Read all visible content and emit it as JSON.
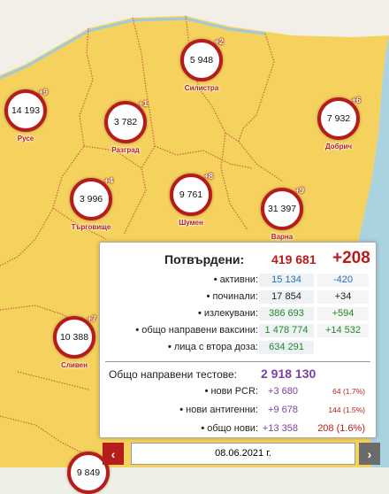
{
  "colors": {
    "region_fill": "#f5d25d",
    "border": "#b71c1c",
    "positive": "#b71c1c"
  },
  "markers": [
    {
      "name": "Силистра",
      "value": "5 948",
      "delta": "+2"
    },
    {
      "name": "Русе",
      "value": "14 193",
      "delta": "+9"
    },
    {
      "name": "Разград",
      "value": "3 782",
      "delta": "+1"
    },
    {
      "name": "Добрич",
      "value": "7 932",
      "delta": "+6"
    },
    {
      "name": "Търговище",
      "value": "3 996",
      "delta": "+4"
    },
    {
      "name": "Шумен",
      "value": "9 761",
      "delta": "+8"
    },
    {
      "name": "Варна",
      "value": "31 397",
      "delta": "+9"
    },
    {
      "name": "Сливен",
      "value": "10 388",
      "delta": "+7"
    },
    {
      "name": "",
      "value": "9 849",
      "delta": ""
    }
  ],
  "panel": {
    "confirmed_label": "Потвърдени:",
    "confirmed_total": "419 681",
    "confirmed_new": "+208",
    "rows": [
      {
        "label": "активни:",
        "value": "15 134",
        "change": "-420",
        "color": "blue"
      },
      {
        "label": "починали:",
        "value": "17 854",
        "change": "+34",
        "color": "dk"
      },
      {
        "label": "излекувани:",
        "value": "386 693",
        "change": "+594",
        "color": "green"
      },
      {
        "label": "общо направени ваксини:",
        "value": "1 478 774",
        "change": "+14 532",
        "color": "green"
      },
      {
        "label": "лица с втора доза:",
        "value": "634 291",
        "change": "",
        "color": "green"
      }
    ],
    "tests_label": "Общо направени тестове:",
    "tests_total": "2 918 130",
    "test_rows": [
      {
        "label": "нови PCR:",
        "value": "+3 680",
        "pct": "64 (1.7%)"
      },
      {
        "label": "нови антигенни:",
        "value": "+9 678",
        "pct": "144 (1.5%)"
      },
      {
        "label": "общо нови:",
        "value": "+13 358",
        "pct": "208 (1.6%)"
      }
    ],
    "bullet": "•"
  },
  "datebar": {
    "prev": "‹",
    "next": "›",
    "date": "08.06.2021 г."
  }
}
